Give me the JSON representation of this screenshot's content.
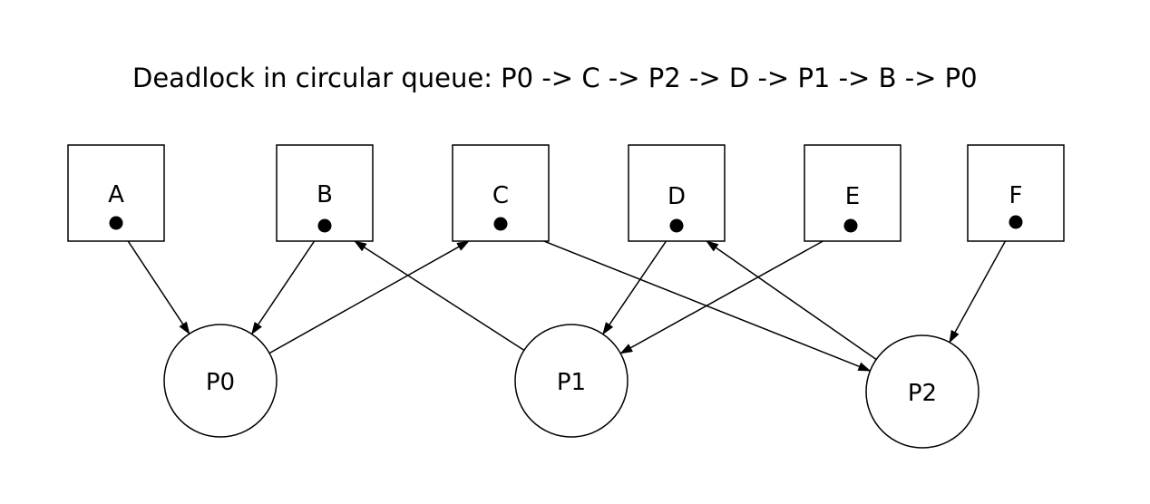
{
  "diagram": {
    "title": "Deadlock in circular queue: P0 -> C -> P2 -> D -> P1 -> B -> P0",
    "resources": [
      {
        "id": "A",
        "label": "A"
      },
      {
        "id": "B",
        "label": "B"
      },
      {
        "id": "C",
        "label": "C"
      },
      {
        "id": "D",
        "label": "D"
      },
      {
        "id": "E",
        "label": "E"
      },
      {
        "id": "F",
        "label": "F"
      }
    ],
    "processes": [
      {
        "id": "P0",
        "label": "P0"
      },
      {
        "id": "P1",
        "label": "P1"
      },
      {
        "id": "P2",
        "label": "P2"
      }
    ],
    "edges": [
      {
        "from": "A",
        "to": "P0",
        "kind": "assignment"
      },
      {
        "from": "B",
        "to": "P0",
        "kind": "assignment"
      },
      {
        "from": "P0",
        "to": "C",
        "kind": "request"
      },
      {
        "from": "P1",
        "to": "B",
        "kind": "request"
      },
      {
        "from": "C",
        "to": "P2",
        "kind": "assignment"
      },
      {
        "from": "D",
        "to": "P1",
        "kind": "assignment"
      },
      {
        "from": "E",
        "to": "P1",
        "kind": "assignment"
      },
      {
        "from": "P2",
        "to": "D",
        "kind": "request"
      },
      {
        "from": "F",
        "to": "P2",
        "kind": "assignment"
      }
    ]
  }
}
